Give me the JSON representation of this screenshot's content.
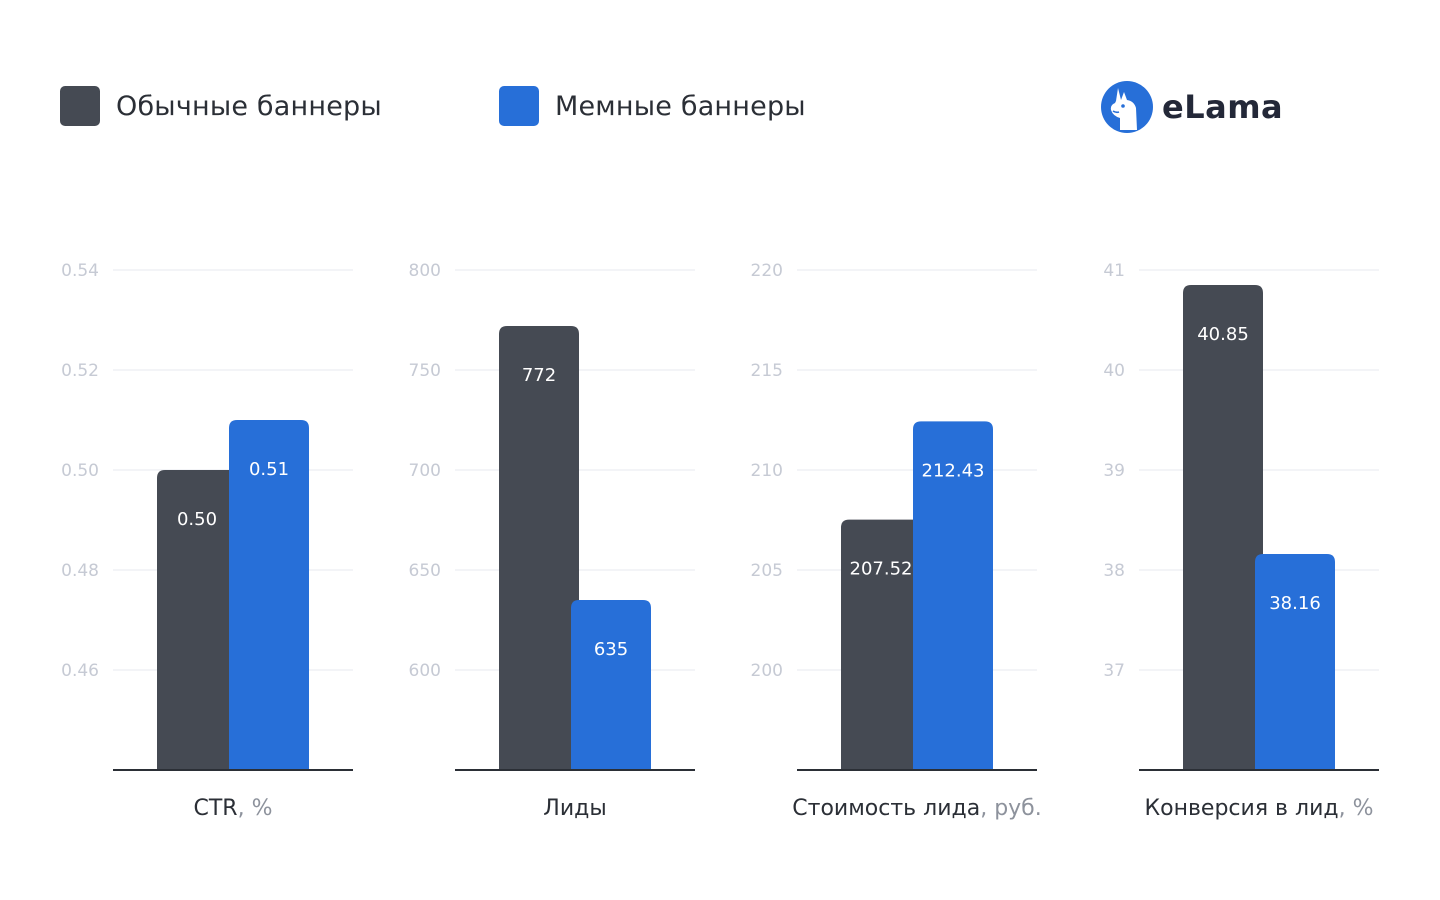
{
  "legend": {
    "items": [
      {
        "label": "Обычные баннеры",
        "color": "#454a53"
      },
      {
        "label": "Мемные баннеры",
        "color": "#276fd8"
      }
    ]
  },
  "brand": {
    "name": "eLama",
    "color": "#276fd8"
  },
  "chart_data": [
    {
      "type": "bar",
      "title": "",
      "xlabel": "CTR",
      "xlabel_unit": "%",
      "categories": [
        "Обычные баннеры",
        "Мемные баннеры"
      ],
      "values": [
        0.5,
        0.51
      ],
      "value_labels": [
        "0.50",
        "0.51"
      ],
      "ylim": [
        0.44,
        0.54
      ],
      "yticks": [
        "0.54",
        "0.52",
        "0.50",
        "0.48",
        "0.46"
      ],
      "grid": true
    },
    {
      "type": "bar",
      "title": "",
      "xlabel": "Лиды",
      "xlabel_unit": "",
      "categories": [
        "Обычные баннеры",
        "Мемные баннеры"
      ],
      "values": [
        772,
        635
      ],
      "value_labels": [
        "772",
        "635"
      ],
      "ylim": [
        550,
        800
      ],
      "yticks": [
        "800",
        "750",
        "700",
        "650",
        "600"
      ],
      "grid": true
    },
    {
      "type": "bar",
      "title": "",
      "xlabel": "Стоимость лида",
      "xlabel_unit": "руб.",
      "categories": [
        "Обычные баннеры",
        "Мемные баннеры"
      ],
      "values": [
        207.52,
        212.43
      ],
      "value_labels": [
        "207.52",
        "212.43"
      ],
      "ylim": [
        195,
        220
      ],
      "yticks": [
        "220",
        "215",
        "210",
        "205",
        "200"
      ],
      "grid": true
    },
    {
      "type": "bar",
      "title": "",
      "xlabel": "Конверсия в лид",
      "xlabel_unit": "%",
      "categories": [
        "Обычные баннеры",
        "Мемные баннеры"
      ],
      "values": [
        40.85,
        38.16
      ],
      "value_labels": [
        "40.85",
        "38.16"
      ],
      "ylim": [
        36,
        41
      ],
      "yticks": [
        "41",
        "40",
        "39",
        "38",
        "37"
      ],
      "grid": true
    }
  ]
}
